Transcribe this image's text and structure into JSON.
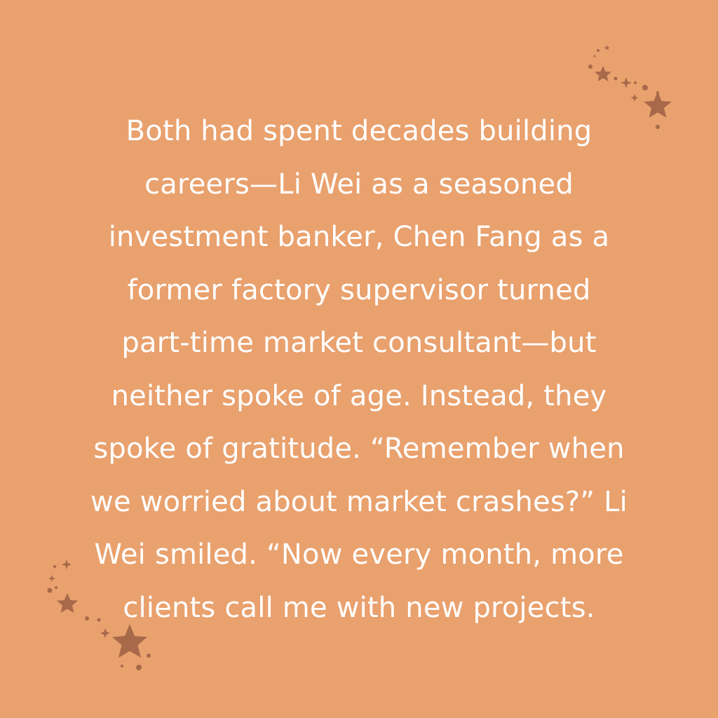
{
  "background_color": "#e9a16e",
  "text_color": "#ffffff",
  "accent_color": "#a8694a",
  "quote": {
    "lines": [
      "Both had spent decades building",
      "careers—Li Wei as a seasoned",
      "investment banker, Chen Fang as a",
      "former factory supervisor turned",
      "part-time market consultant—but",
      "neither spoke of age. Instead, they",
      "spoke of gratitude. “Remember when",
      "we worried about market crashes?” Li",
      "Wei smiled. “Now every month, more",
      "clients call me with new projects."
    ]
  },
  "decorations": {
    "top_right": "star-cluster-icon",
    "bottom_left": "star-cluster-icon"
  }
}
